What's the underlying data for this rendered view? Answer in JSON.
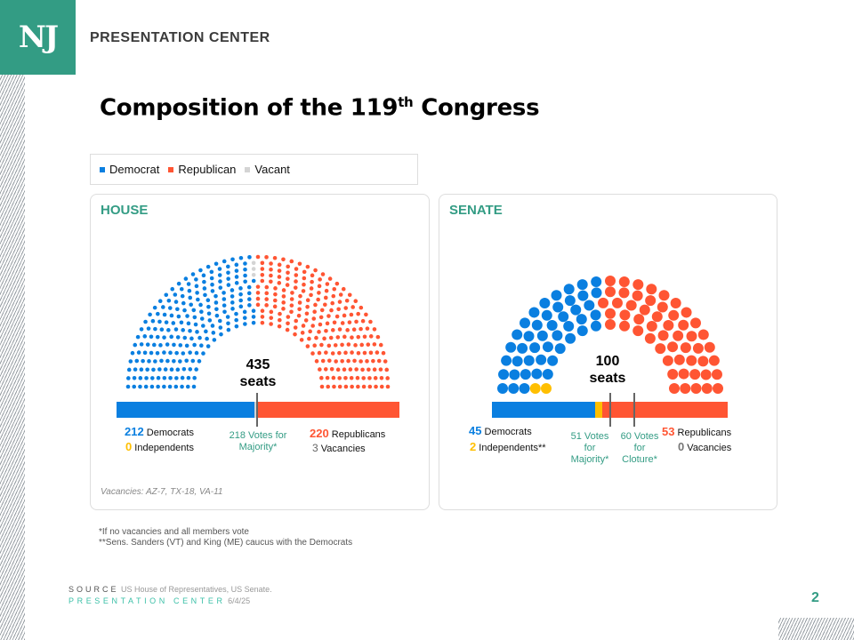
{
  "header": {
    "logo": "NJ",
    "brand": "PRESENTATION CENTER"
  },
  "title": {
    "main": "Composition of the 119",
    "sup": "th",
    "rest": " Congress"
  },
  "legend": [
    {
      "label": "Democrat",
      "color": "#0a7fe0"
    },
    {
      "label": "Republican",
      "color": "#ff5533"
    },
    {
      "label": "Vacant",
      "color": "#d4d4d4"
    }
  ],
  "colors": {
    "dem": "#0a7fe0",
    "rep": "#ff5533",
    "ind": "#ffbf00",
    "vac": "#d4d4d4",
    "accent": "#339c84"
  },
  "chart_data": [
    {
      "type": "hemicycle",
      "title": "HOUSE",
      "total_label": "435",
      "seats_label": "seats",
      "parties": [
        {
          "name": "Democrats",
          "value": 212
        },
        {
          "name": "Independents",
          "value": 0
        },
        {
          "name": "Vacancies",
          "value": 3
        },
        {
          "name": "Republicans",
          "value": 220
        }
      ],
      "thresholds": [
        {
          "value": 218,
          "label": "218 Votes for Majority*"
        }
      ],
      "note": "Vacancies: AZ-7, TX-18, VA-11"
    },
    {
      "type": "hemicycle",
      "title": "SENATE",
      "total_label": "100",
      "seats_label": "seats",
      "parties": [
        {
          "name": "Independents",
          "value": 2
        },
        {
          "name": "Democrats",
          "value": 45
        },
        {
          "name": "Republicans",
          "value": 53
        },
        {
          "name": "Vacancies",
          "value": 0
        }
      ],
      "thresholds": [
        {
          "value": 51,
          "label": "51 Votes for Majority*"
        },
        {
          "value": 60,
          "label": "60 Votes for Cloture*"
        }
      ]
    }
  ],
  "labels": {
    "house": {
      "dem_num": "212",
      "dem": "Democrats",
      "ind_num": "0",
      "ind": "Independents",
      "rep_num": "220",
      "rep": "Republicans",
      "vac_num": "3",
      "vac": "Vacancies"
    },
    "senate": {
      "dem_num": "45",
      "dem": "Democrats",
      "ind_num": "2",
      "ind": "Independents**",
      "rep_num": "53",
      "rep": "Republicans",
      "vac_num": "0",
      "vac": "Vacancies"
    }
  },
  "footnotes": [
    "*If no vacancies and all members vote",
    "**Sens. Sanders (VT) and King (ME) caucus with the Democrats"
  ],
  "source": {
    "label": "SOURCE",
    "text": "US House of Representatives, US Senate.",
    "org": "PRESENTATION CENTER",
    "date": "6/4/25"
  },
  "page_number": "2"
}
